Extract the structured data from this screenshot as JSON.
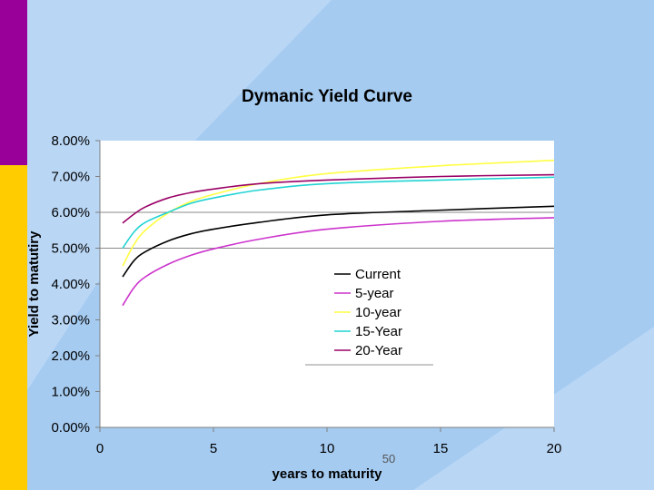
{
  "colors": {
    "background": "#b9d6f5",
    "diamond": "#a5cbf1",
    "plot_area": "#ffffff",
    "bar_top": "#990099",
    "bar_bottom": "#ffcc00"
  },
  "page_number": "50",
  "chart_data": {
    "type": "line",
    "title": "Dymanic Yield Curve",
    "xlabel": "years to maturity",
    "ylabel": "Yield to matutiry",
    "xlim": [
      0,
      20
    ],
    "ylim": [
      0,
      0.08
    ],
    "x_ticks": [
      "0",
      "5",
      "10",
      "15",
      "20"
    ],
    "y_ticks": [
      "0.00%",
      "1.00%",
      "2.00%",
      "3.00%",
      "4.00%",
      "5.00%",
      "6.00%",
      "7.00%",
      "8.00%"
    ],
    "horizontal_gridlines": [
      0.05,
      0.06
    ],
    "legend_position": "center-right",
    "x": [
      1,
      1.5,
      2,
      3,
      4,
      5,
      7,
      10,
      15,
      20
    ],
    "series": [
      {
        "name": "Current",
        "color": "#000000",
        "values": [
          0.042,
          0.0465,
          0.049,
          0.052,
          0.054,
          0.0553,
          0.0572,
          0.0593,
          0.0606,
          0.0617
        ]
      },
      {
        "name": "5-year",
        "color": "#cc33cc",
        "values": [
          0.034,
          0.039,
          0.042,
          0.0455,
          0.048,
          0.0498,
          0.0525,
          0.0553,
          0.0575,
          0.0585
        ]
      },
      {
        "name": "10-year",
        "color": "#ffff44",
        "values": [
          0.045,
          0.051,
          0.055,
          0.0598,
          0.063,
          0.065,
          0.068,
          0.0708,
          0.073,
          0.0745
        ]
      },
      {
        "name": "15-Year",
        "color": "#22d3d3",
        "values": [
          0.05,
          0.0545,
          0.0572,
          0.06,
          0.0625,
          0.064,
          0.0662,
          0.068,
          0.069,
          0.0698
        ]
      },
      {
        "name": "20-Year",
        "color": "#990066",
        "values": [
          0.057,
          0.0595,
          0.0615,
          0.064,
          0.0655,
          0.0665,
          0.068,
          0.069,
          0.07,
          0.0705
        ]
      }
    ]
  }
}
